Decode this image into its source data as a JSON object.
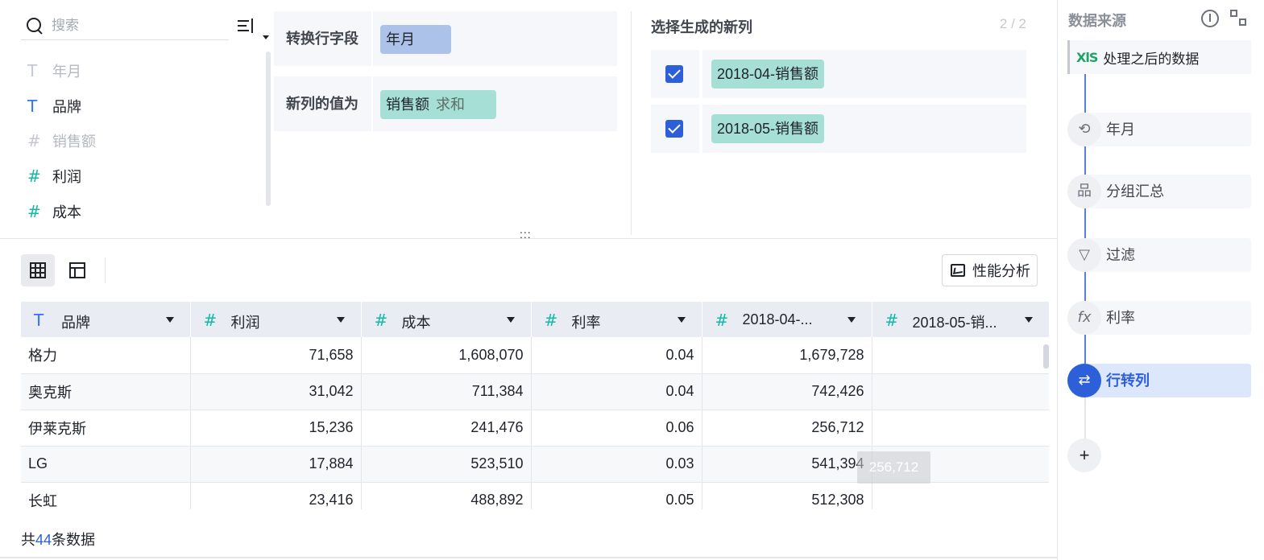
{
  "search": {
    "placeholder": "搜索"
  },
  "fields": [
    {
      "type": "T",
      "label": "年月",
      "disabled": true
    },
    {
      "type": "T",
      "label": "品牌",
      "disabled": false
    },
    {
      "type": "#",
      "label": "销售额",
      "disabled": true
    },
    {
      "type": "#",
      "label": "利润",
      "disabled": false
    },
    {
      "type": "#",
      "label": "成本",
      "disabled": false
    }
  ],
  "config": {
    "row_field_label": "转换行字段",
    "row_field_value": "年月",
    "value_label": "新列的值为",
    "value_field": "销售额",
    "value_agg": "求和"
  },
  "new_columns": {
    "title": "选择生成的新列",
    "count": "2 / 2",
    "items": [
      {
        "label": "2018-04-销售额",
        "checked": true
      },
      {
        "label": "2018-05-销售额",
        "checked": true
      }
    ]
  },
  "drag_handle": ":::",
  "toolbar": {
    "perf_label": "性能分析"
  },
  "table": {
    "columns": [
      {
        "icon": "T",
        "label": "品牌"
      },
      {
        "icon": "#",
        "label": "利润"
      },
      {
        "icon": "#",
        "label": "成本"
      },
      {
        "icon": "#",
        "label": "利率"
      },
      {
        "icon": "#",
        "label": "2018-04-..."
      },
      {
        "icon": "#",
        "label": "2018-05-销..."
      }
    ],
    "rows": [
      [
        "格力",
        "71,658",
        "1,608,070",
        "0.04",
        "1,679,728",
        ""
      ],
      [
        "奥克斯",
        "31,042",
        "711,384",
        "0.04",
        "742,426",
        ""
      ],
      [
        "伊莱克斯",
        "15,236",
        "241,476",
        "0.06",
        "256,712",
        ""
      ],
      [
        "LG",
        "17,884",
        "523,510",
        "0.03",
        "541,394",
        ""
      ],
      [
        "长虹",
        "23,416",
        "488,892",
        "0.05",
        "512,308",
        ""
      ]
    ],
    "tooltip": "256,712"
  },
  "footer": {
    "prefix": "共",
    "count": "44",
    "suffix": "条数据"
  },
  "sidebar": {
    "title": "数据来源",
    "source_icon": "XlS",
    "source": "处理之后的数据",
    "steps": [
      {
        "icon": "history-icon",
        "glyph": "⟲",
        "label": "年月",
        "active": false
      },
      {
        "icon": "group-icon",
        "glyph": "品",
        "label": "分组汇总",
        "active": false
      },
      {
        "icon": "filter-icon",
        "glyph": "▽",
        "label": "过滤",
        "active": false
      },
      {
        "icon": "formula-icon",
        "glyph": "fx",
        "label": "利率",
        "active": false
      },
      {
        "icon": "row-to-column-icon",
        "glyph": "⇄",
        "label": "行转列",
        "active": true
      }
    ],
    "add": "+"
  },
  "colors": {
    "accent": "#2d5fd9",
    "text_field": "#3370ff",
    "num_field": "#14b8a6",
    "chip_blue": "#adc2e8",
    "chip_green": "#a6dfd5"
  }
}
